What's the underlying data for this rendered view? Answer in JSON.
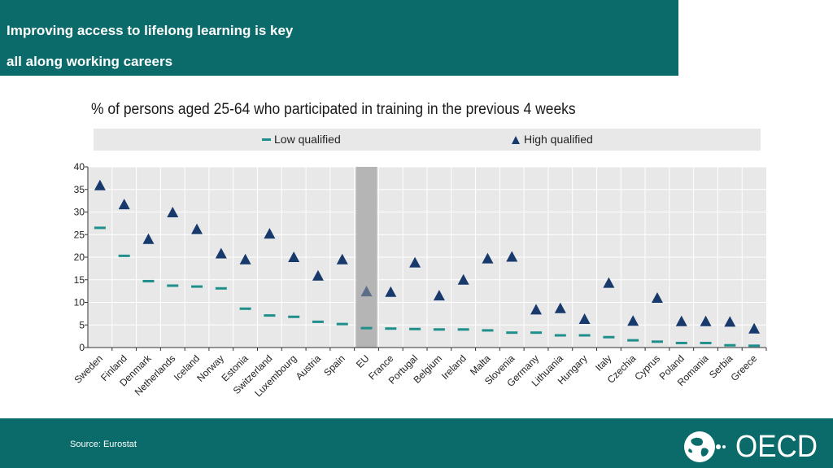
{
  "header": {
    "title_line1": "Improving access to lifelong learning is key",
    "title_line2": "all along working careers"
  },
  "footer": {
    "source": "Source: Eurostat",
    "logo_text": "OECD"
  },
  "colors": {
    "brand_teal": "#0b6b6a",
    "low_qualified": "#1e8f8b",
    "high_qualified": "#17396b",
    "eu_highlight": "#b5b5b5",
    "eu_marker": "#5c6f8a",
    "plot_bg": "#e8e8e8",
    "legend_bg": "#e8e8e8"
  },
  "chart_data": {
    "type": "scatter",
    "title": "% of persons aged 25-64 who participated in training in the previous 4 weeks",
    "xlabel": "",
    "ylabel": "",
    "ylim": [
      0,
      40
    ],
    "yticks": [
      0,
      5,
      10,
      15,
      20,
      25,
      30,
      35,
      40
    ],
    "grid": true,
    "legend_position": "top",
    "highlight_category": "EU",
    "categories": [
      "Sweden",
      "Finland",
      "Denmark",
      "Netherlands",
      "Iceland",
      "Norway",
      "Estonia",
      "Switzerland",
      "Luxembourg",
      "Austria",
      "Spain",
      "EU",
      "France",
      "Portugal",
      "Belgium",
      "Ireland",
      "Malta",
      "Slovenia",
      "Germany",
      "Lithuania",
      "Hungary",
      "Italy",
      "Czechia",
      "Cyprus",
      "Poland",
      "Romania",
      "Serbia",
      "Greece"
    ],
    "series": [
      {
        "name": "Low qualified",
        "marker": "dash",
        "values": [
          26.5,
          20.3,
          14.7,
          13.7,
          13.5,
          13.1,
          8.6,
          7.1,
          6.8,
          5.7,
          5.2,
          4.3,
          4.2,
          4.1,
          4.0,
          4.0,
          3.8,
          3.3,
          3.3,
          2.7,
          2.7,
          2.3,
          1.6,
          1.3,
          1.0,
          1.0,
          0.5,
          0.4
        ]
      },
      {
        "name": "High qualified",
        "marker": "triangle",
        "values": [
          35.9,
          31.7,
          24.0,
          29.9,
          26.2,
          20.8,
          19.5,
          25.2,
          20.0,
          15.9,
          19.5,
          12.4,
          12.3,
          18.8,
          11.5,
          15.0,
          19.7,
          20.1,
          8.4,
          8.7,
          6.3,
          14.3,
          5.9,
          11.0,
          5.8,
          5.8,
          5.7,
          4.2
        ]
      }
    ]
  }
}
